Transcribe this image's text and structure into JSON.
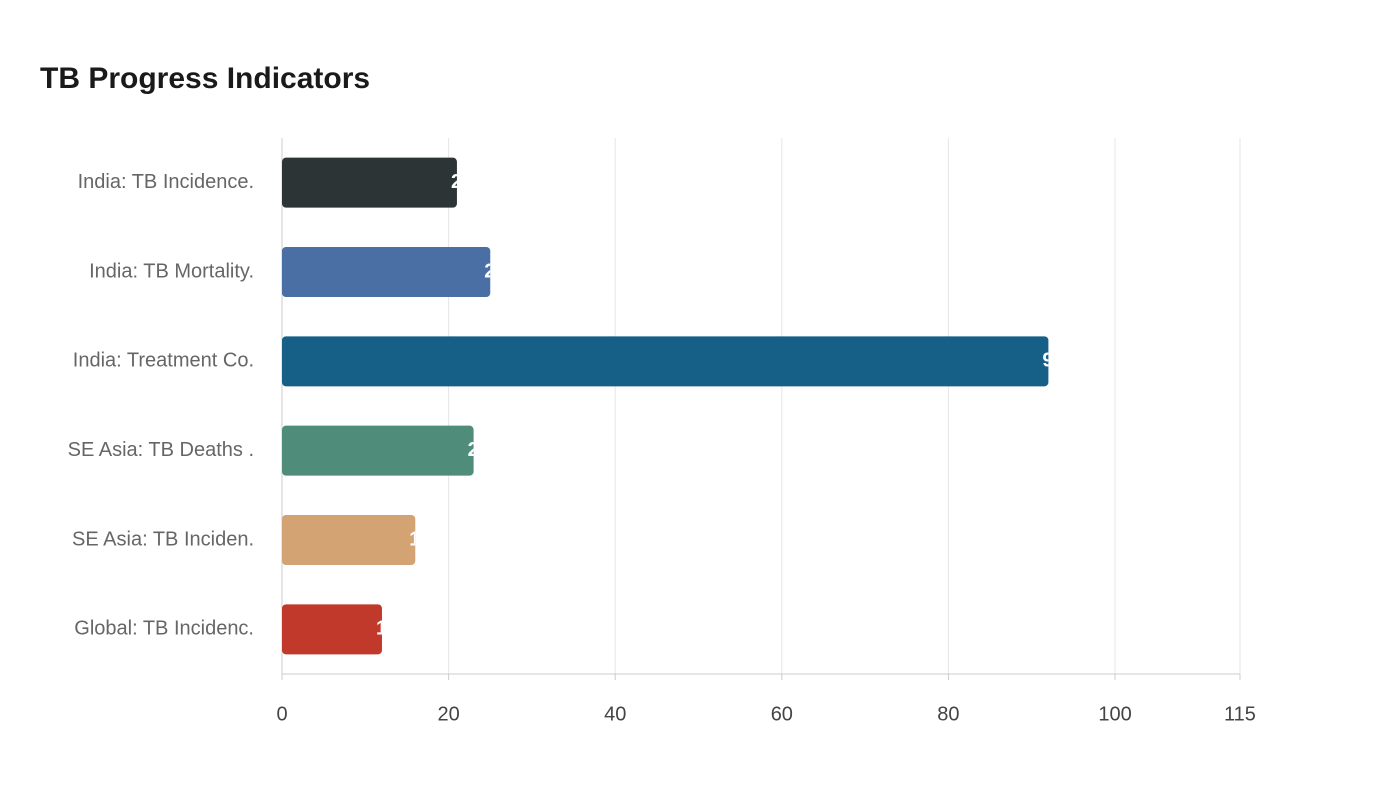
{
  "chart_data": {
    "type": "bar",
    "orientation": "horizontal",
    "title": "TB Progress Indicators",
    "categories": [
      "India: TB Incidence.",
      "India: TB Mortality.",
      "India: Treatment Co.",
      "SE Asia: TB Deaths .",
      "SE Asia: TB Inciden.",
      "Global: TB Incidenc."
    ],
    "values": [
      21,
      25,
      92,
      23,
      16,
      12
    ],
    "colors": [
      "#2d3436",
      "#4a6fa5",
      "#166088",
      "#4f8c7a",
      "#d4a373",
      "#c0392b"
    ],
    "xlim": [
      0,
      115
    ],
    "xticks": [
      0,
      20,
      40,
      60,
      80,
      100,
      115
    ],
    "grid": true
  }
}
